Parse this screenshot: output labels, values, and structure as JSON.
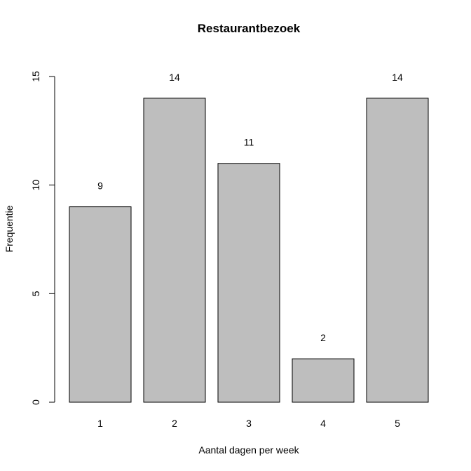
{
  "chart_data": {
    "type": "bar",
    "title": "Restaurantbezoek",
    "xlabel": "Aantal dagen per week",
    "ylabel": "Frequentie",
    "categories": [
      "1",
      "2",
      "3",
      "4",
      "5"
    ],
    "values": [
      9,
      14,
      11,
      2,
      14
    ],
    "data_labels": [
      "9",
      "14",
      "11",
      "2",
      "14"
    ],
    "ylim": [
      0,
      15
    ],
    "yticks": [
      0,
      5,
      10,
      15
    ],
    "ytick_labels": [
      "0",
      "5",
      "10",
      "15"
    ],
    "grid": false,
    "legend": "none",
    "colors": {
      "bar_fill": "#bebebe",
      "bar_stroke": "#000000",
      "axis": "#000000",
      "text": "#000000",
      "background": "#ffffff"
    }
  }
}
